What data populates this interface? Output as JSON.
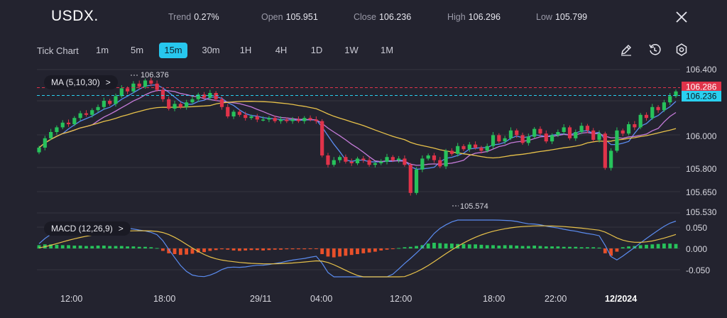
{
  "header": {
    "symbol": "USDX.",
    "stats": [
      {
        "label": "Trend",
        "value": "0.27%"
      },
      {
        "label": "Open",
        "value": "105.951"
      },
      {
        "label": "Close",
        "value": "106.236"
      },
      {
        "label": "High",
        "value": "106.296"
      },
      {
        "label": "Low",
        "value": "105.799"
      }
    ]
  },
  "toolbar": {
    "tick_chart_label": "Tick Chart",
    "timeframes": [
      "1m",
      "5m",
      "15m",
      "30m",
      "1H",
      "4H",
      "1D",
      "1W",
      "1M"
    ],
    "active_timeframe": "15m"
  },
  "indicators": {
    "ma_label": "MA (5,10,30)",
    "macd_label": "MACD (12,26,9)",
    "pill_arrow": ">"
  },
  "price_axis": {
    "ticks": [
      "106.400",
      "106.286",
      "106.236",
      "106.000",
      "105.800",
      "105.650",
      "105.530"
    ],
    "current_price_label": "106.286",
    "close_price_label": "106.236",
    "current_price_color": "#e0334a",
    "close_price_color": "#2ad0f0"
  },
  "macd_axis": {
    "ticks": [
      "0.050",
      "0.000",
      "-0.050"
    ]
  },
  "time_axis": {
    "labels": [
      "12:00",
      "18:00",
      "29/11",
      "04:00",
      "12:00",
      "18:00",
      "22:00",
      "12/2024"
    ]
  },
  "annotations": {
    "high_marker": "106.376",
    "low_marker": "105.574"
  },
  "colors": {
    "background": "#23232f",
    "up_candle": "#27c25b",
    "down_candle": "#e0334a",
    "ma5": "#5b8cf0",
    "ma10": "#c57bd9",
    "ma30": "#e8c24a",
    "macd_line": "#5b8cf0",
    "signal_line": "#e8c24a",
    "hist_pos": "#27c25b",
    "hist_neg": "#e8502a",
    "accent": "#27c7ee"
  },
  "chart_data": {
    "type": "candlestick",
    "price_range": [
      105.53,
      106.43
    ],
    "candle_closes": [
      105.93,
      105.99,
      106.03,
      106.06,
      106.09,
      106.08,
      106.12,
      106.15,
      106.14,
      106.17,
      106.19,
      106.23,
      106.21,
      106.26,
      106.31,
      106.29,
      106.34,
      106.32,
      106.36,
      106.34,
      106.3,
      106.24,
      106.18,
      106.21,
      106.19,
      106.22,
      106.24,
      106.27,
      106.25,
      106.28,
      106.24,
      106.19,
      106.13,
      106.16,
      106.14,
      106.12,
      106.13,
      106.11,
      106.11,
      106.12,
      106.1,
      106.11,
      106.1,
      106.11,
      106.1,
      106.12,
      106.11,
      106.1,
      105.88,
      105.82,
      105.85,
      105.87,
      105.84,
      105.83,
      105.86,
      105.85,
      105.82,
      105.83,
      105.84,
      105.87,
      105.85,
      105.86,
      105.82,
      105.64,
      105.79,
      105.86,
      105.88,
      105.85,
      105.81,
      105.91,
      105.89,
      105.94,
      105.92,
      105.95,
      105.93,
      105.91,
      105.94,
      106.01,
      105.97,
      105.99,
      106.04,
      106.01,
      105.96,
      106.0,
      106.05,
      106.02,
      105.97,
      106.01,
      106.03,
      106.06,
      105.99,
      106.03,
      106.07,
      106.04,
      105.98,
      106.02,
      105.8,
      105.91,
      106.04,
      106.02,
      106.08,
      106.06,
      106.14,
      106.12,
      106.19,
      106.17,
      106.22,
      106.26,
      106.29
    ],
    "macd_hist": [
      0.008,
      0.01,
      0.01,
      0.009,
      0.008,
      0.008,
      0.007,
      0.007,
      0.006,
      0.006,
      0.007,
      0.007,
      0.006,
      0.006,
      0.006,
      0.005,
      0.005,
      0.004,
      0.004,
      0.003,
      0.001,
      -0.006,
      -0.012,
      -0.014,
      -0.016,
      -0.015,
      -0.013,
      -0.01,
      -0.009,
      -0.006,
      -0.004,
      -0.002,
      -0.003,
      -0.005,
      -0.006,
      -0.005,
      -0.004,
      -0.004,
      -0.005,
      -0.004,
      -0.003,
      -0.003,
      -0.002,
      -0.002,
      -0.002,
      -0.002,
      -0.001,
      -0.001,
      -0.014,
      -0.02,
      -0.022,
      -0.02,
      -0.018,
      -0.016,
      -0.014,
      -0.012,
      -0.01,
      -0.008,
      -0.005,
      -0.003,
      -0.001,
      0.001,
      0.003,
      0.004,
      0.006,
      0.008,
      0.012,
      0.014,
      0.013,
      0.012,
      0.012,
      0.011,
      0.011,
      0.01,
      0.01,
      0.009,
      0.008,
      0.008,
      0.007,
      0.008,
      0.008,
      0.007,
      0.006,
      0.006,
      0.007,
      0.006,
      0.005,
      0.005,
      0.005,
      0.004,
      0.004,
      0.004,
      0.003,
      0.003,
      0.003,
      0.002,
      -0.012,
      -0.018,
      -0.008,
      0.003,
      0.005,
      0.006,
      0.008,
      0.009,
      0.01,
      0.011,
      0.012,
      0.012,
      0.011
    ],
    "macd_range": [
      -0.07,
      0.07
    ]
  }
}
